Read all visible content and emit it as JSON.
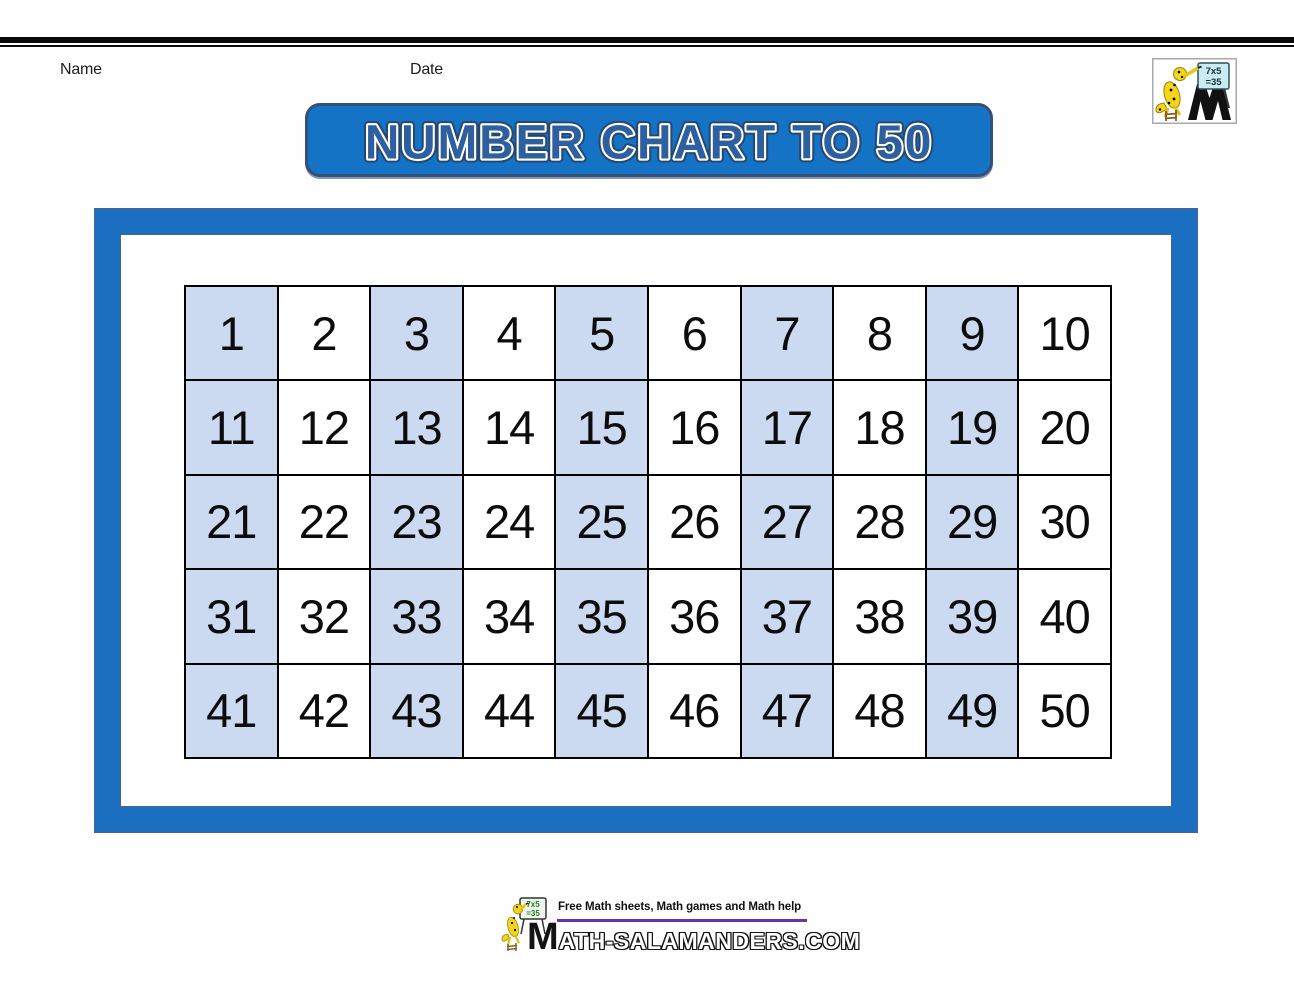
{
  "header": {
    "name_label": "Name",
    "date_label": "Date"
  },
  "banner": {
    "title": "NUMBER CHART TO 50"
  },
  "corner_logo": {
    "board_line1": "7x5",
    "board_line2": "=35"
  },
  "number_chart": {
    "type": "table",
    "rows": [
      [
        1,
        2,
        3,
        4,
        5,
        6,
        7,
        8,
        9,
        10
      ],
      [
        11,
        12,
        13,
        14,
        15,
        16,
        17,
        18,
        19,
        20
      ],
      [
        21,
        22,
        23,
        24,
        25,
        26,
        27,
        28,
        29,
        30
      ],
      [
        31,
        32,
        33,
        34,
        35,
        36,
        37,
        38,
        39,
        40
      ],
      [
        41,
        42,
        43,
        44,
        45,
        46,
        47,
        48,
        49,
        50
      ]
    ],
    "shaded_columns": [
      1,
      3,
      5,
      7,
      9
    ]
  },
  "footer": {
    "tagline": "Free Math sheets, Math games and Math help",
    "wordmark_initial": "M",
    "wordmark_rest": "ATH-SALAMANDERS.COM",
    "board_line1": "7x5",
    "board_line2": "=35"
  },
  "colors": {
    "banner_blue": "#1573c6",
    "banner_border": "#31507a",
    "frame_blue": "#1b6fc0",
    "cell_blue": "#cbd9f1",
    "title_letter_fill": "#2e5f9e",
    "underline_purple": "#7030a0",
    "salamander_yellow": "#f2d51c"
  }
}
